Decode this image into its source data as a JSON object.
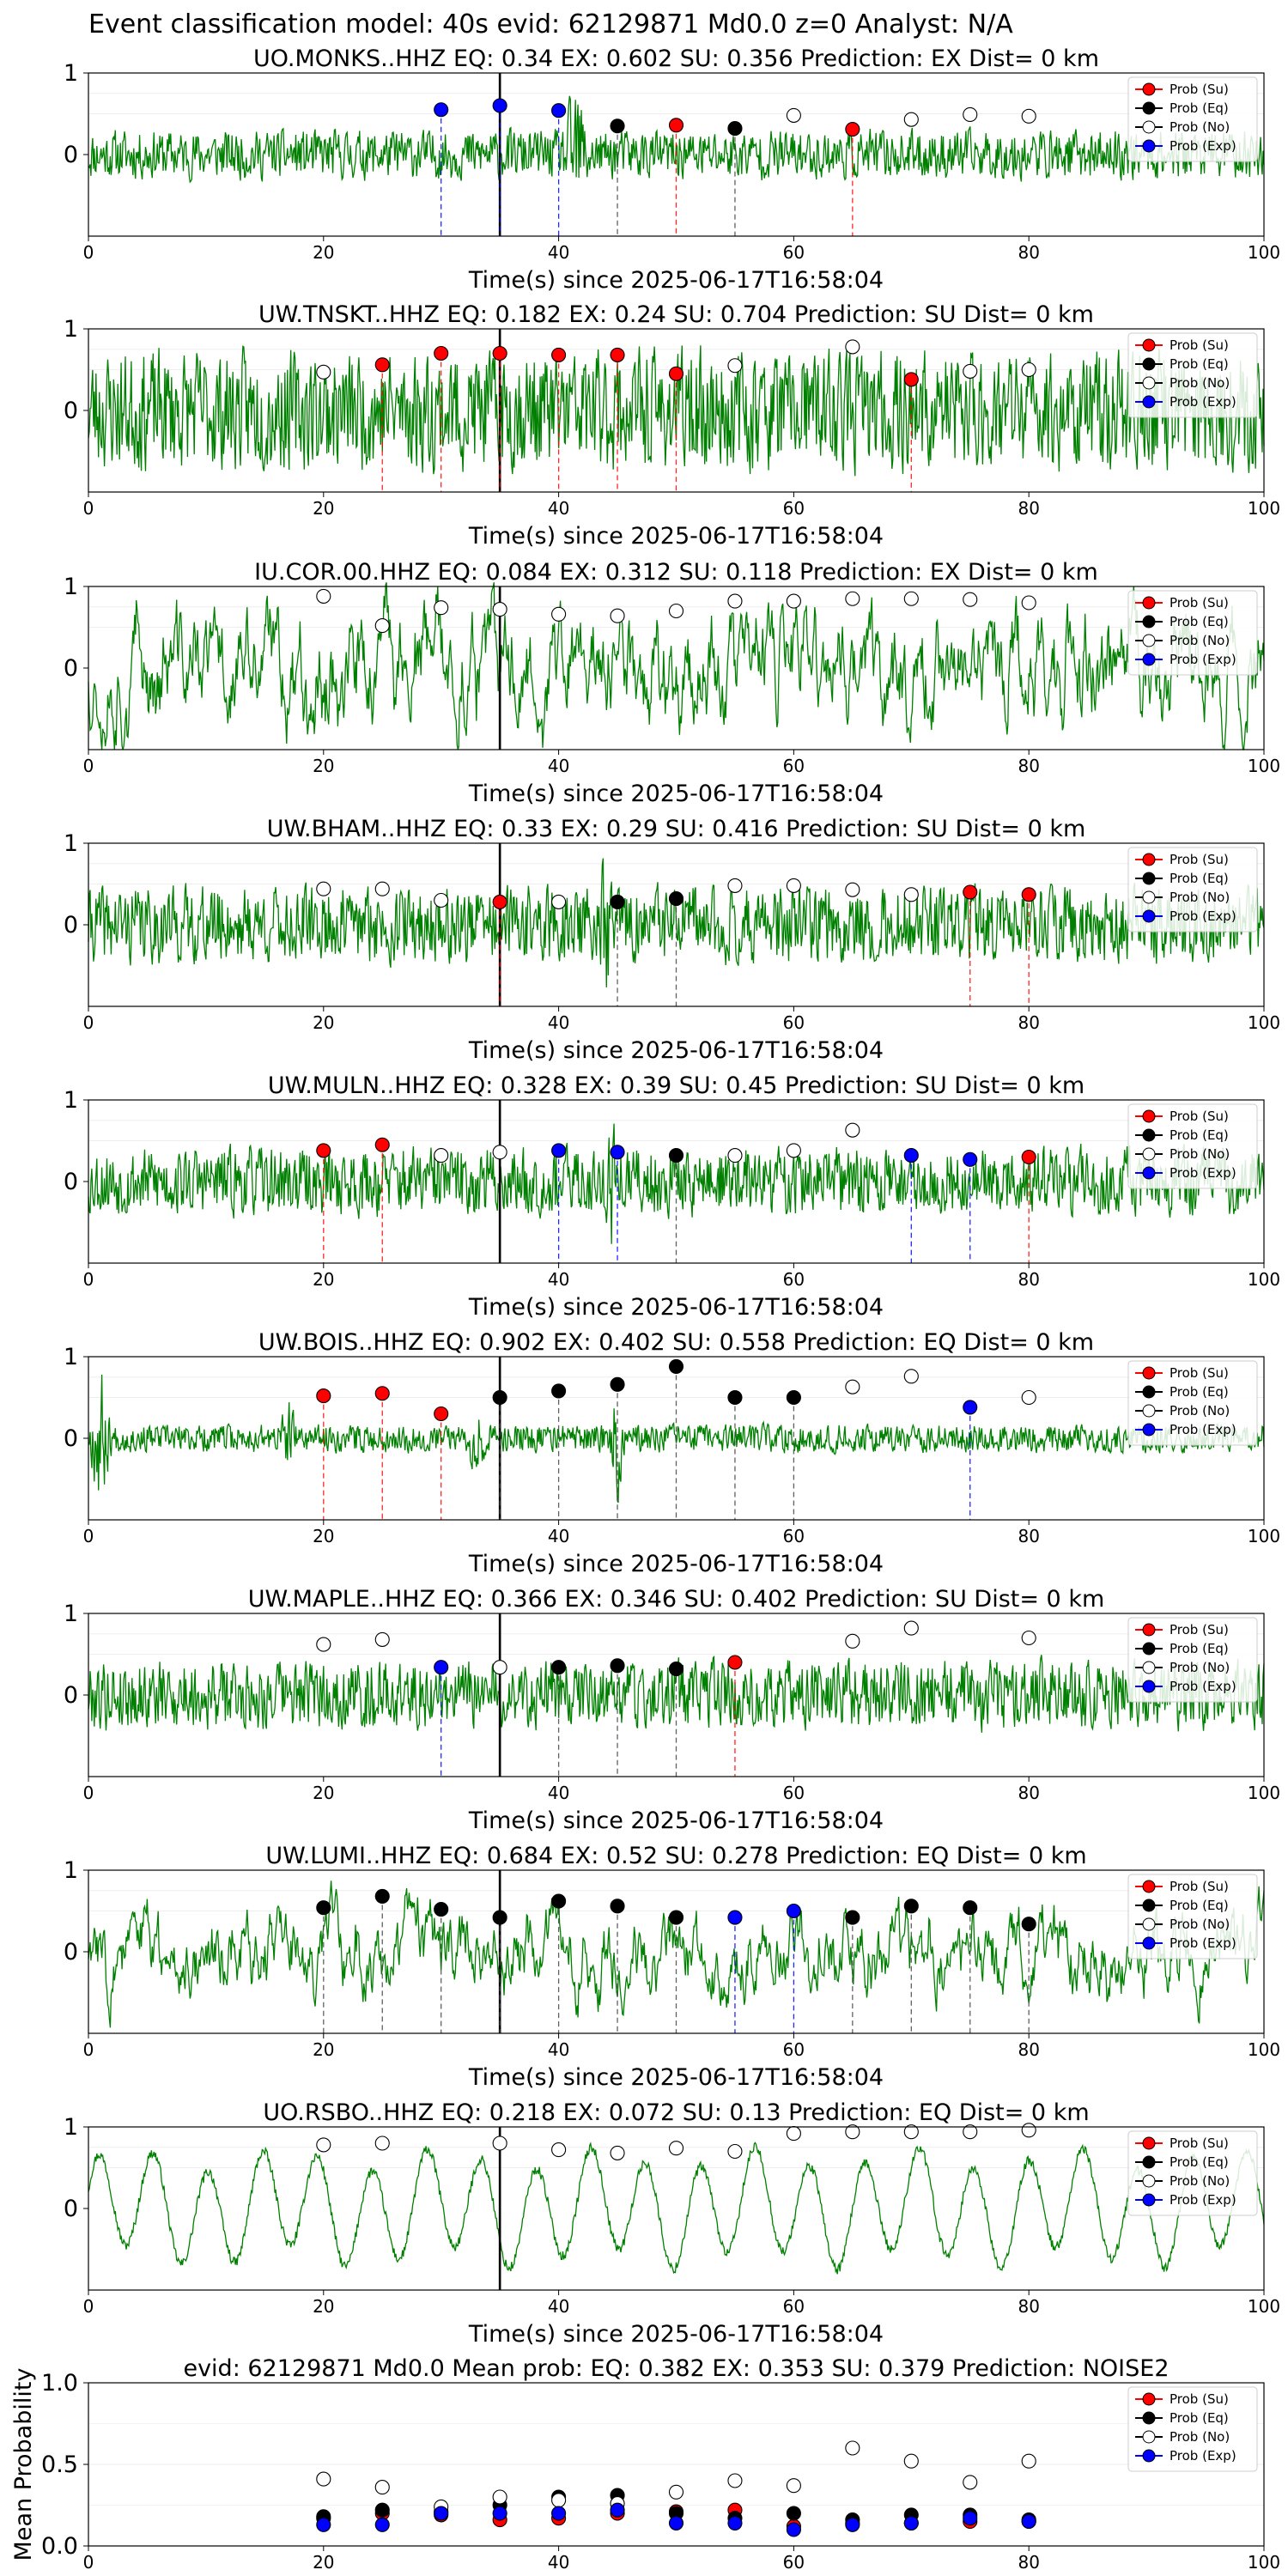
{
  "suptitle": "Event classification model: 40s evid: 62129871 Md0.0 z=0 Analyst: N/A",
  "legend_labels": [
    "Prob (Su)",
    "Prob (Eq)",
    "Prob (No)",
    "Prob (Exp)"
  ],
  "colors": {
    "su": "#ff0000",
    "eq": "#000000",
    "no": "#ffffff",
    "exp": "#0000ff",
    "waveform": "#008000"
  },
  "chart_data": [
    {
      "type": "line",
      "title": "UO.MONKS..HHZ   EQ: 0.34   EX: 0.602   SU: 0.356   Prediction: EX    Dist= 0 km",
      "xlabel": "Time(s) since 2025-06-17T16:58:04",
      "ylabel": "",
      "xlim": [
        0,
        100
      ],
      "ylim": [
        -1,
        1
      ],
      "xticks": [
        0,
        20,
        40,
        60,
        80,
        100
      ],
      "yticks": [
        0,
        1
      ],
      "waveform": {
        "seed": 11,
        "amp": 0.32,
        "bursts": [
          [
            41.5,
            1.0,
            1.8
          ]
        ]
      },
      "event_line_x": 35,
      "markers": [
        {
          "x": 30,
          "y": 0.55,
          "class": "exp"
        },
        {
          "x": 35,
          "y": 0.6,
          "class": "exp"
        },
        {
          "x": 40,
          "y": 0.54,
          "class": "exp"
        },
        {
          "x": 45,
          "y": 0.35,
          "class": "eq"
        },
        {
          "x": 50,
          "y": 0.36,
          "class": "su"
        },
        {
          "x": 55,
          "y": 0.32,
          "class": "eq"
        },
        {
          "x": 60,
          "y": 0.48,
          "class": "no"
        },
        {
          "x": 65,
          "y": 0.31,
          "class": "su"
        },
        {
          "x": 70,
          "y": 0.43,
          "class": "no"
        },
        {
          "x": 75,
          "y": 0.49,
          "class": "no"
        },
        {
          "x": 80,
          "y": 0.47,
          "class": "no"
        }
      ]
    },
    {
      "type": "line",
      "title": "UW.TNSKT..HHZ   EQ: 0.182   EX: 0.24   SU: 0.704   Prediction: SU    Dist= 0 km",
      "xlabel": "Time(s) since 2025-06-17T16:58:04",
      "ylabel": "",
      "xlim": [
        0,
        100
      ],
      "ylim": [
        -1,
        1
      ],
      "xticks": [
        0,
        20,
        40,
        60,
        80,
        100
      ],
      "yticks": [
        0,
        1
      ],
      "waveform": {
        "seed": 23,
        "amp": 0.78,
        "bursts": []
      },
      "event_line_x": 35,
      "markers": [
        {
          "x": 20,
          "y": 0.47,
          "class": "no"
        },
        {
          "x": 25,
          "y": 0.56,
          "class": "su"
        },
        {
          "x": 30,
          "y": 0.7,
          "class": "su"
        },
        {
          "x": 35,
          "y": 0.7,
          "class": "su"
        },
        {
          "x": 40,
          "y": 0.68,
          "class": "su"
        },
        {
          "x": 45,
          "y": 0.68,
          "class": "su"
        },
        {
          "x": 50,
          "y": 0.45,
          "class": "su"
        },
        {
          "x": 55,
          "y": 0.55,
          "class": "no"
        },
        {
          "x": 65,
          "y": 0.78,
          "class": "no"
        },
        {
          "x": 70,
          "y": 0.38,
          "class": "su"
        },
        {
          "x": 75,
          "y": 0.48,
          "class": "no"
        },
        {
          "x": 80,
          "y": 0.5,
          "class": "no"
        }
      ]
    },
    {
      "type": "line",
      "title": "IU.COR.00.HHZ   EQ: 0.084   EX: 0.312   SU: 0.118   Prediction: EX    Dist= 0 km",
      "xlabel": "Time(s) since 2025-06-17T16:58:04",
      "ylabel": "",
      "xlim": [
        0,
        100
      ],
      "ylim": [
        -1,
        1
      ],
      "xticks": [
        0,
        20,
        40,
        60,
        80,
        100
      ],
      "yticks": [
        0,
        1
      ],
      "waveform": {
        "seed": 37,
        "amp": 0.55,
        "bursts": [],
        "smooth": true
      },
      "event_line_x": 35,
      "markers": [
        {
          "x": 20,
          "y": 0.88,
          "class": "no"
        },
        {
          "x": 25,
          "y": 0.52,
          "class": "no"
        },
        {
          "x": 30,
          "y": 0.74,
          "class": "no"
        },
        {
          "x": 35,
          "y": 0.72,
          "class": "no"
        },
        {
          "x": 40,
          "y": 0.66,
          "class": "no"
        },
        {
          "x": 45,
          "y": 0.64,
          "class": "no"
        },
        {
          "x": 50,
          "y": 0.7,
          "class": "no"
        },
        {
          "x": 55,
          "y": 0.82,
          "class": "no"
        },
        {
          "x": 60,
          "y": 0.82,
          "class": "no"
        },
        {
          "x": 65,
          "y": 0.85,
          "class": "no"
        },
        {
          "x": 70,
          "y": 0.85,
          "class": "no"
        },
        {
          "x": 75,
          "y": 0.84,
          "class": "no"
        },
        {
          "x": 80,
          "y": 0.8,
          "class": "no"
        }
      ]
    },
    {
      "type": "line",
      "title": "UW.BHAM..HHZ   EQ: 0.33   EX: 0.29   SU: 0.416   Prediction: SU    Dist= 0 km",
      "xlabel": "Time(s) since 2025-06-17T16:58:04",
      "ylabel": "",
      "xlim": [
        0,
        100
      ],
      "ylim": [
        -1,
        1
      ],
      "xticks": [
        0,
        20,
        40,
        60,
        80,
        100
      ],
      "yticks": [
        0,
        1
      ],
      "waveform": {
        "seed": 41,
        "amp": 0.5,
        "bursts": [
          [
            44,
            1.0,
            1.2
          ]
        ]
      },
      "event_line_x": 35,
      "markers": [
        {
          "x": 20,
          "y": 0.44,
          "class": "no"
        },
        {
          "x": 25,
          "y": 0.44,
          "class": "no"
        },
        {
          "x": 30,
          "y": 0.3,
          "class": "no"
        },
        {
          "x": 35,
          "y": 0.28,
          "class": "su"
        },
        {
          "x": 40,
          "y": 0.28,
          "class": "no"
        },
        {
          "x": 45,
          "y": 0.28,
          "class": "eq"
        },
        {
          "x": 50,
          "y": 0.32,
          "class": "eq"
        },
        {
          "x": 55,
          "y": 0.48,
          "class": "no"
        },
        {
          "x": 60,
          "y": 0.48,
          "class": "no"
        },
        {
          "x": 65,
          "y": 0.43,
          "class": "no"
        },
        {
          "x": 70,
          "y": 0.37,
          "class": "no"
        },
        {
          "x": 75,
          "y": 0.4,
          "class": "su"
        },
        {
          "x": 80,
          "y": 0.37,
          "class": "su"
        }
      ]
    },
    {
      "type": "line",
      "title": "UW.MULN..HHZ   EQ: 0.328   EX: 0.39   SU: 0.45   Prediction: SU    Dist= 0 km",
      "xlabel": "Time(s) since 2025-06-17T16:58:04",
      "ylabel": "",
      "xlim": [
        0,
        100
      ],
      "ylim": [
        -1,
        1
      ],
      "xticks": [
        0,
        20,
        40,
        60,
        80,
        100
      ],
      "yticks": [
        0,
        1
      ],
      "waveform": {
        "seed": 53,
        "amp": 0.45,
        "bursts": [
          [
            44.5,
            1.0,
            1.2
          ]
        ]
      },
      "event_line_x": 35,
      "markers": [
        {
          "x": 20,
          "y": 0.38,
          "class": "su"
        },
        {
          "x": 25,
          "y": 0.45,
          "class": "su"
        },
        {
          "x": 30,
          "y": 0.32,
          "class": "no"
        },
        {
          "x": 35,
          "y": 0.36,
          "class": "no"
        },
        {
          "x": 40,
          "y": 0.38,
          "class": "exp"
        },
        {
          "x": 45,
          "y": 0.36,
          "class": "exp"
        },
        {
          "x": 50,
          "y": 0.32,
          "class": "eq"
        },
        {
          "x": 55,
          "y": 0.32,
          "class": "no"
        },
        {
          "x": 60,
          "y": 0.38,
          "class": "no"
        },
        {
          "x": 65,
          "y": 0.63,
          "class": "no"
        },
        {
          "x": 70,
          "y": 0.32,
          "class": "exp"
        },
        {
          "x": 75,
          "y": 0.27,
          "class": "exp"
        },
        {
          "x": 80,
          "y": 0.3,
          "class": "su"
        }
      ]
    },
    {
      "type": "line",
      "title": "UW.BOIS..HHZ   EQ: 0.902   EX: 0.402   SU: 0.558   Prediction: EQ    Dist= 0 km",
      "xlabel": "Time(s) since 2025-06-17T16:58:04",
      "ylabel": "",
      "xlim": [
        0,
        100
      ],
      "ylim": [
        -1,
        1
      ],
      "xticks": [
        0,
        20,
        40,
        60,
        80,
        100
      ],
      "yticks": [
        0,
        1
      ],
      "waveform": {
        "seed": 67,
        "amp": 0.18,
        "bursts": [
          [
            1,
            1.0,
            1.2
          ],
          [
            45,
            0.9,
            0.8
          ],
          [
            17,
            0.5,
            1.5
          ],
          [
            33,
            0.5,
            1.5
          ]
        ]
      },
      "event_line_x": 35,
      "markers": [
        {
          "x": 20,
          "y": 0.52,
          "class": "su"
        },
        {
          "x": 25,
          "y": 0.55,
          "class": "su"
        },
        {
          "x": 30,
          "y": 0.3,
          "class": "su"
        },
        {
          "x": 35,
          "y": 0.5,
          "class": "eq"
        },
        {
          "x": 40,
          "y": 0.58,
          "class": "eq"
        },
        {
          "x": 45,
          "y": 0.66,
          "class": "eq"
        },
        {
          "x": 50,
          "y": 0.88,
          "class": "eq"
        },
        {
          "x": 55,
          "y": 0.5,
          "class": "eq"
        },
        {
          "x": 60,
          "y": 0.5,
          "class": "eq"
        },
        {
          "x": 65,
          "y": 0.63,
          "class": "no"
        },
        {
          "x": 70,
          "y": 0.76,
          "class": "no"
        },
        {
          "x": 75,
          "y": 0.38,
          "class": "exp"
        },
        {
          "x": 80,
          "y": 0.5,
          "class": "no"
        }
      ]
    },
    {
      "type": "line",
      "title": "UW.MAPLE..HHZ   EQ: 0.366   EX: 0.346   SU: 0.402   Prediction: SU    Dist= 0 km",
      "xlabel": "Time(s) since 2025-06-17T16:58:04",
      "ylabel": "",
      "xlim": [
        0,
        100
      ],
      "ylim": [
        -1,
        1
      ],
      "xticks": [
        0,
        20,
        40,
        60,
        80,
        100
      ],
      "yticks": [
        0,
        1
      ],
      "waveform": {
        "seed": 79,
        "amp": 0.45,
        "bursts": []
      },
      "event_line_x": 35,
      "markers": [
        {
          "x": 20,
          "y": 0.62,
          "class": "no"
        },
        {
          "x": 25,
          "y": 0.68,
          "class": "no"
        },
        {
          "x": 30,
          "y": 0.34,
          "class": "exp"
        },
        {
          "x": 35,
          "y": 0.34,
          "class": "no"
        },
        {
          "x": 40,
          "y": 0.34,
          "class": "eq"
        },
        {
          "x": 45,
          "y": 0.36,
          "class": "eq"
        },
        {
          "x": 50,
          "y": 0.32,
          "class": "eq"
        },
        {
          "x": 55,
          "y": 0.4,
          "class": "su"
        },
        {
          "x": 65,
          "y": 0.66,
          "class": "no"
        },
        {
          "x": 70,
          "y": 0.82,
          "class": "no"
        },
        {
          "x": 80,
          "y": 0.7,
          "class": "no"
        }
      ]
    },
    {
      "type": "line",
      "title": "UW.LUMI..HHZ   EQ: 0.684   EX: 0.52   SU: 0.278   Prediction: EQ    Dist= 0 km",
      "xlabel": "Time(s) since 2025-06-17T16:58:04",
      "ylabel": "",
      "xlim": [
        0,
        100
      ],
      "ylim": [
        -1,
        1
      ],
      "xticks": [
        0,
        20,
        40,
        60,
        80,
        100
      ],
      "yticks": [
        0,
        1
      ],
      "waveform": {
        "seed": 83,
        "amp": 0.38,
        "bursts": [],
        "smooth": true
      },
      "event_line_x": 35,
      "markers": [
        {
          "x": 20,
          "y": 0.54,
          "class": "eq"
        },
        {
          "x": 25,
          "y": 0.68,
          "class": "eq"
        },
        {
          "x": 30,
          "y": 0.52,
          "class": "eq"
        },
        {
          "x": 35,
          "y": 0.42,
          "class": "eq"
        },
        {
          "x": 40,
          "y": 0.62,
          "class": "eq"
        },
        {
          "x": 45,
          "y": 0.56,
          "class": "eq"
        },
        {
          "x": 50,
          "y": 0.42,
          "class": "eq"
        },
        {
          "x": 55,
          "y": 0.42,
          "class": "exp"
        },
        {
          "x": 60,
          "y": 0.5,
          "class": "exp"
        },
        {
          "x": 65,
          "y": 0.42,
          "class": "eq"
        },
        {
          "x": 70,
          "y": 0.56,
          "class": "eq"
        },
        {
          "x": 75,
          "y": 0.54,
          "class": "eq"
        },
        {
          "x": 80,
          "y": 0.34,
          "class": "eq"
        }
      ]
    },
    {
      "type": "line",
      "title": "UO.RSBO..HHZ   EQ: 0.218   EX: 0.072   SU: 0.13   Prediction: EQ    Dist= 0 km",
      "xlabel": "Time(s) since 2025-06-17T16:58:04",
      "ylabel": "",
      "xlim": [
        0,
        100
      ],
      "ylim": [
        -1,
        1
      ],
      "xticks": [
        0,
        20,
        40,
        60,
        80,
        100
      ],
      "yticks": [
        0,
        1
      ],
      "waveform": {
        "seed": 97,
        "amp": 0.72,
        "bursts": [],
        "lowfreq": true
      },
      "event_line_x": 35,
      "markers": [
        {
          "x": 20,
          "y": 0.78,
          "class": "no"
        },
        {
          "x": 25,
          "y": 0.8,
          "class": "no"
        },
        {
          "x": 35,
          "y": 0.8,
          "class": "no"
        },
        {
          "x": 40,
          "y": 0.72,
          "class": "no"
        },
        {
          "x": 45,
          "y": 0.68,
          "class": "no"
        },
        {
          "x": 50,
          "y": 0.74,
          "class": "no"
        },
        {
          "x": 55,
          "y": 0.7,
          "class": "no"
        },
        {
          "x": 60,
          "y": 0.92,
          "class": "no"
        },
        {
          "x": 65,
          "y": 0.94,
          "class": "no"
        },
        {
          "x": 70,
          "y": 0.94,
          "class": "no"
        },
        {
          "x": 75,
          "y": 0.94,
          "class": "no"
        },
        {
          "x": 80,
          "y": 0.96,
          "class": "no"
        }
      ]
    },
    {
      "type": "scatter",
      "title": "evid: 62129871  Md0.0   Mean prob:    EQ: 0.382  EX: 0.353  SU: 0.379   Prediction: NOISE2",
      "xlabel": "",
      "ylabel": "Mean Probability",
      "xlim": [
        0,
        100
      ],
      "ylim": [
        0,
        1
      ],
      "xticks": [
        0,
        20,
        40,
        60,
        80,
        100
      ],
      "yticks": [
        0.0,
        0.5,
        1.0
      ],
      "ytick_labels": [
        "0.0",
        "0.5",
        "1.0"
      ],
      "series": [
        {
          "name": "Prob (Su)",
          "class": "su",
          "x": [
            20,
            25,
            30,
            35,
            40,
            45,
            50,
            55,
            60,
            65,
            70,
            75,
            80
          ],
          "values": [
            0.17,
            0.2,
            0.19,
            0.16,
            0.17,
            0.2,
            0.21,
            0.22,
            0.12,
            0.14,
            0.14,
            0.15,
            0.15
          ]
        },
        {
          "name": "Prob (Eq)",
          "class": "eq",
          "x": [
            20,
            25,
            30,
            35,
            40,
            45,
            50,
            55,
            60,
            65,
            70,
            75,
            80
          ],
          "values": [
            0.18,
            0.22,
            0.21,
            0.25,
            0.3,
            0.31,
            0.2,
            0.17,
            0.2,
            0.16,
            0.19,
            0.19,
            0.16
          ]
        },
        {
          "name": "Prob (No)",
          "class": "no",
          "x": [
            20,
            25,
            30,
            35,
            40,
            45,
            50,
            55,
            60,
            65,
            70,
            75,
            80
          ],
          "values": [
            0.41,
            0.36,
            0.24,
            0.3,
            0.28,
            0.26,
            0.33,
            0.4,
            0.37,
            0.6,
            0.52,
            0.39,
            0.52
          ]
        },
        {
          "name": "Prob (Exp)",
          "class": "exp",
          "x": [
            20,
            25,
            30,
            35,
            40,
            45,
            50,
            55,
            60,
            65,
            70,
            75,
            80
          ],
          "values": [
            0.13,
            0.13,
            0.2,
            0.2,
            0.2,
            0.22,
            0.14,
            0.14,
            0.1,
            0.13,
            0.14,
            0.17,
            0.15
          ]
        }
      ]
    }
  ]
}
